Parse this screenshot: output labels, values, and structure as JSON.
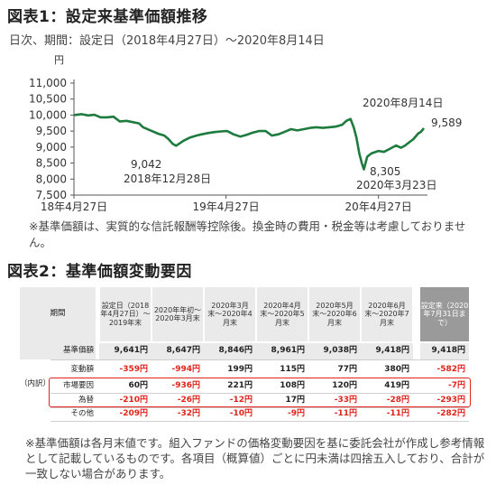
{
  "figure1": {
    "title": "図表1：設定来基準価額推移",
    "subtitle": "日次、期間：設定日（2018年4月27日）〜2020年8月14日",
    "note": "※基準価額は、実質的な信託報酬等控除後。換金時の費用・税金等は考慮しておりません。"
  },
  "chart_data": {
    "type": "line",
    "y_unit": "円",
    "ylim": [
      7500,
      11000
    ],
    "yticks": [
      "7,500",
      "8,000",
      "8,500",
      "9,000",
      "9,500",
      "10,000",
      "10,500",
      "11,000"
    ],
    "ytick_values": [
      7500,
      8000,
      8500,
      9000,
      9500,
      10000,
      10500,
      11000
    ],
    "xlim": [
      "2018-04-27",
      "2020-08-14"
    ],
    "xticks": [
      {
        "date": "2018-04-27",
        "label": "18年4月27日"
      },
      {
        "date": "2019-04-27",
        "label": "19年4月27日"
      },
      {
        "date": "2020-04-27",
        "label": "20年4月27日"
      }
    ],
    "series": [
      {
        "name": "",
        "color": "#1e7b3e",
        "points": [
          [
            "2018-04-27",
            10000
          ],
          [
            "2018-05-15",
            10030
          ],
          [
            "2018-05-31",
            9990
          ],
          [
            "2018-06-15",
            10010
          ],
          [
            "2018-06-30",
            9930
          ],
          [
            "2018-07-15",
            9930
          ],
          [
            "2018-07-31",
            9950
          ],
          [
            "2018-08-15",
            9800
          ],
          [
            "2018-08-31",
            9820
          ],
          [
            "2018-09-15",
            9780
          ],
          [
            "2018-09-30",
            9740
          ],
          [
            "2018-10-10",
            9620
          ],
          [
            "2018-10-31",
            9500
          ],
          [
            "2018-11-15",
            9420
          ],
          [
            "2018-11-30",
            9360
          ],
          [
            "2018-12-10",
            9250
          ],
          [
            "2018-12-20",
            9100
          ],
          [
            "2018-12-28",
            9042
          ],
          [
            "2019-01-15",
            9200
          ],
          [
            "2019-01-31",
            9300
          ],
          [
            "2019-02-15",
            9360
          ],
          [
            "2019-02-28",
            9400
          ],
          [
            "2019-03-15",
            9440
          ],
          [
            "2019-03-31",
            9470
          ],
          [
            "2019-04-15",
            9490
          ],
          [
            "2019-04-30",
            9500
          ],
          [
            "2019-05-15",
            9400
          ],
          [
            "2019-05-31",
            9330
          ],
          [
            "2019-06-15",
            9380
          ],
          [
            "2019-06-30",
            9450
          ],
          [
            "2019-07-15",
            9500
          ],
          [
            "2019-07-31",
            9500
          ],
          [
            "2019-08-15",
            9360
          ],
          [
            "2019-08-31",
            9400
          ],
          [
            "2019-09-15",
            9480
          ],
          [
            "2019-09-30",
            9560
          ],
          [
            "2019-10-15",
            9520
          ],
          [
            "2019-10-31",
            9560
          ],
          [
            "2019-11-15",
            9600
          ],
          [
            "2019-11-30",
            9620
          ],
          [
            "2019-12-15",
            9600
          ],
          [
            "2019-12-31",
            9620
          ],
          [
            "2020-01-15",
            9640
          ],
          [
            "2020-01-31",
            9700
          ],
          [
            "2020-02-10",
            9820
          ],
          [
            "2020-02-20",
            9880
          ],
          [
            "2020-02-28",
            9600
          ],
          [
            "2020-03-05",
            9300
          ],
          [
            "2020-03-12",
            8800
          ],
          [
            "2020-03-18",
            8500
          ],
          [
            "2020-03-23",
            8305
          ],
          [
            "2020-03-31",
            8700
          ],
          [
            "2020-04-10",
            8800
          ],
          [
            "2020-04-27",
            8880
          ],
          [
            "2020-05-10",
            8850
          ],
          [
            "2020-05-25",
            8950
          ],
          [
            "2020-06-08",
            9050
          ],
          [
            "2020-06-20",
            8980
          ],
          [
            "2020-06-30",
            9050
          ],
          [
            "2020-07-10",
            9150
          ],
          [
            "2020-07-20",
            9250
          ],
          [
            "2020-07-31",
            9420
          ],
          [
            "2020-08-07",
            9480
          ],
          [
            "2020-08-14",
            9589
          ]
        ]
      }
    ],
    "annotations": [
      {
        "date": "2018-12-28",
        "value": "9,042",
        "label": "2018年12月28日"
      },
      {
        "date": "2020-03-23",
        "value": "8,305",
        "label": "2020年3月23日"
      },
      {
        "date": "2020-08-14",
        "value": "9,589",
        "label": "2020年8月14日"
      }
    ],
    "grid": false
  },
  "figure2": {
    "title": "図表2：基準価額変動要因",
    "table": {
      "period_header": "期間",
      "columns": [
        "設定日（2018年4月27日）〜2019年末",
        "2020年年初〜2020年3月末",
        "2020年3月末〜2020年4月末",
        "2020年4月末〜2020年5月末",
        "2020年5月末〜2020年6月末",
        "2020年6月末〜2020年7月末"
      ],
      "summary_column": "設定来（2020年7月31日まで）",
      "uchiwake_label": "（内訳）",
      "rows": [
        {
          "label": "基準価額",
          "values": [
            "9,641円",
            "8,647円",
            "8,846円",
            "8,961円",
            "9,038円",
            "9,418円"
          ],
          "summary": "9,418円"
        },
        {
          "label": "変動額",
          "values": [
            "-359円",
            "-994円",
            "199円",
            "115円",
            "77円",
            "380円"
          ],
          "summary": "-582円"
        },
        {
          "label": "市場要因",
          "values": [
            "60円",
            "-936円",
            "221円",
            "108円",
            "120円",
            "419円"
          ],
          "summary": "-7円"
        },
        {
          "label": "為替",
          "values": [
            "-210円",
            "-26円",
            "-12円",
            "17円",
            "-33円",
            "-28円"
          ],
          "summary": "-293円"
        },
        {
          "label": "その他",
          "values": [
            "-209円",
            "-32円",
            "-10円",
            "-9円",
            "-11円",
            "-11円"
          ],
          "summary": "-282円"
        }
      ]
    },
    "note": "※基準価額は各月末値です。組入ファンドの価格変動要因を基に委託会社が作成し参考情報として記載しているものです。各項目（概算値）ごとに円未満は四捨五入しており、合計が一致しない場合があります。"
  },
  "colors": {
    "line": "#1e7b3e",
    "negative": "#e2231a",
    "highlight_border": "#e2231a",
    "summary_header": "#9a9a9a"
  }
}
